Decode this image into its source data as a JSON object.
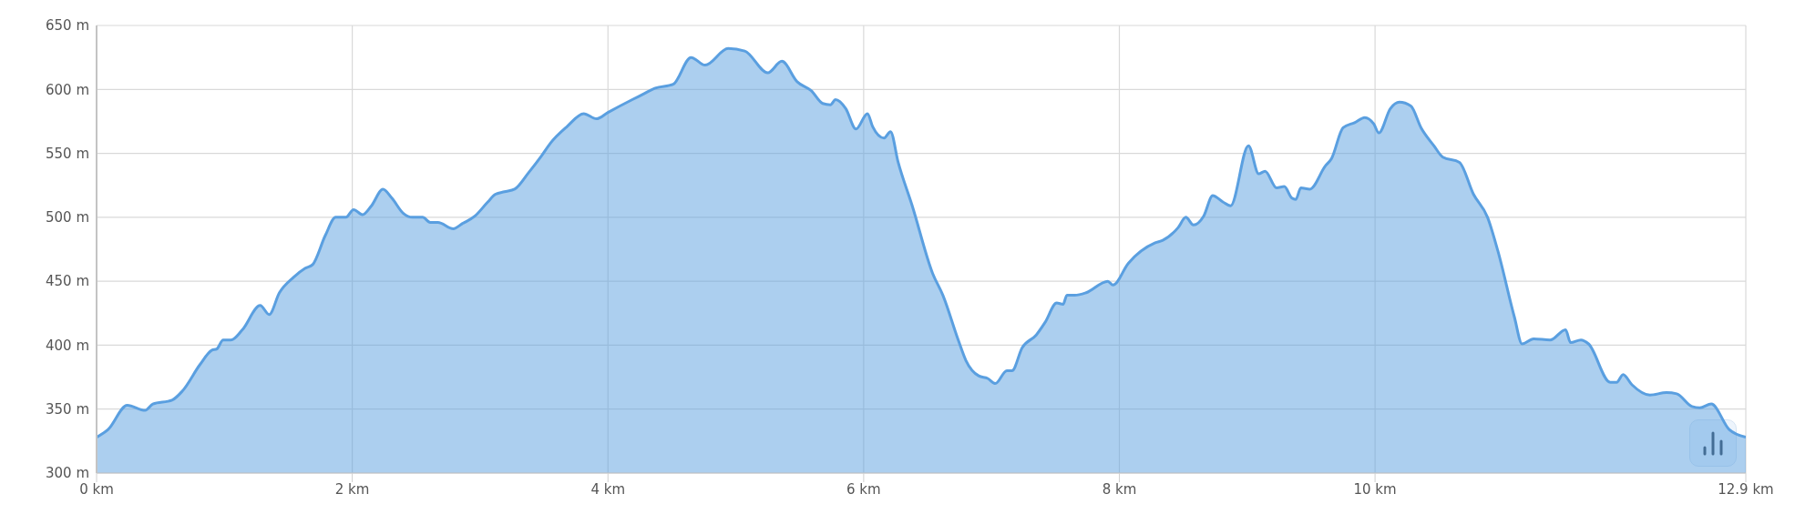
{
  "chart_data": {
    "type": "area",
    "color": "#5a9fe0",
    "grid": true,
    "xlim": [
      0,
      12.9
    ],
    "xticks": [
      {
        "value": 0,
        "label": "0 km"
      },
      {
        "value": 2,
        "label": "2 km"
      },
      {
        "value": 4,
        "label": "4 km"
      },
      {
        "value": 6,
        "label": "6 km"
      },
      {
        "value": 8,
        "label": "8 km"
      },
      {
        "value": 10,
        "label": "10 km"
      },
      {
        "value": 12.9,
        "label": "12.9 km"
      }
    ],
    "ylim": [
      300,
      650
    ],
    "yticks": [
      {
        "value": 300,
        "label": "300 m"
      },
      {
        "value": 350,
        "label": "350 m"
      },
      {
        "value": 400,
        "label": "400 m"
      },
      {
        "value": 450,
        "label": "450 m"
      },
      {
        "value": 500,
        "label": "500 m"
      },
      {
        "value": 550,
        "label": "550 m"
      },
      {
        "value": 600,
        "label": "600 m"
      },
      {
        "value": 650,
        "label": "650 m"
      }
    ],
    "x": [
      0,
      0.09,
      0.24,
      0.38,
      0.44,
      0.59,
      0.67,
      0.81,
      0.9,
      0.94,
      0.99,
      1.05,
      1.14,
      1.28,
      1.35,
      1.43,
      1.54,
      1.63,
      1.69,
      1.79,
      1.87,
      1.95,
      2.01,
      2.08,
      2.15,
      2.24,
      2.31,
      2.4,
      2.47,
      2.55,
      2.61,
      2.67,
      2.79,
      2.86,
      2.96,
      3.06,
      3.12,
      3.19,
      3.27,
      3.38,
      3.48,
      3.55,
      3.68,
      3.81,
      3.91,
      4.0,
      4.19,
      4.27,
      4.37,
      4.51,
      4.65,
      4.76,
      4.94,
      5.07,
      5.25,
      5.36,
      5.48,
      5.59,
      5.68,
      5.74,
      5.78,
      5.86,
      5.94,
      6.03,
      6.07,
      6.16,
      6.21,
      6.27,
      6.38,
      6.54,
      6.62,
      6.74,
      6.8,
      6.9,
      6.97,
      7.03,
      7.12,
      7.16,
      7.24,
      7.35,
      7.42,
      7.51,
      7.56,
      7.59,
      7.65,
      7.74,
      7.91,
      7.95,
      8.07,
      8.28,
      8.34,
      8.46,
      8.52,
      8.58,
      8.66,
      8.73,
      8.81,
      8.87,
      9.01,
      9.09,
      9.14,
      9.23,
      9.29,
      9.35,
      9.38,
      9.42,
      9.49,
      9.61,
      9.66,
      9.75,
      9.84,
      9.92,
      9.99,
      10.03,
      10.12,
      10.19,
      10.28,
      10.36,
      10.46,
      10.53,
      10.66,
      10.77,
      10.88,
      10.96,
      11.09,
      11.15,
      11.24,
      11.37,
      11.49,
      11.53,
      11.61,
      11.67,
      11.84,
      11.89,
      11.94,
      12.01,
      12.15,
      12.28,
      12.36,
      12.48,
      12.54,
      12.63,
      12.77,
      12.9
    ],
    "values": [
      328,
      334,
      353,
      349,
      354,
      357,
      364,
      385,
      396,
      397,
      404,
      404,
      412,
      431,
      424,
      441,
      453,
      460,
      463,
      486,
      500,
      500,
      506,
      502,
      509,
      522,
      515,
      503,
      500,
      500,
      496,
      496,
      491,
      495,
      501,
      512,
      518,
      520,
      522,
      535,
      548,
      558,
      571,
      581,
      577,
      582,
      592,
      596,
      601,
      604,
      625,
      619,
      632,
      630,
      613,
      622,
      606,
      599,
      589,
      588,
      592,
      585,
      569,
      581,
      571,
      562,
      567,
      543,
      509,
      456,
      439,
      404,
      388,
      376,
      374,
      370,
      380,
      380,
      398,
      408,
      418,
      433,
      432,
      439,
      439,
      441,
      450,
      447,
      464,
      480,
      482,
      492,
      500,
      494,
      501,
      517,
      512,
      509,
      556,
      534,
      536,
      523,
      524,
      515,
      514,
      523,
      522,
      540,
      546,
      570,
      574,
      578,
      573,
      566,
      585,
      590,
      587,
      570,
      556,
      547,
      543,
      518,
      500,
      474,
      422,
      401,
      405,
      404,
      412,
      402,
      404,
      401,
      371,
      371,
      377,
      369,
      361,
      363,
      362,
      352,
      351,
      354,
      334,
      328
    ]
  }
}
